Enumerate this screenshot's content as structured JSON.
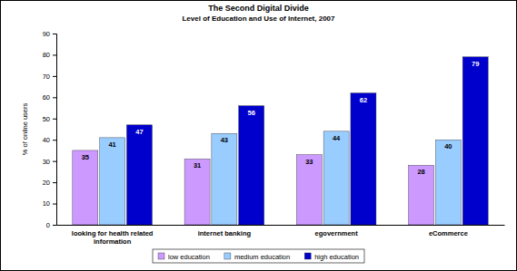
{
  "chart_data": {
    "type": "bar",
    "title": "The Second Digital Divide",
    "subtitle": "Level of Education and Use of Internet, 2007",
    "y_label": "% of online users",
    "categories": [
      "looking for health related information",
      "internet banking",
      "egovernment",
      "eCommerce"
    ],
    "series": [
      {
        "name": "low education",
        "color": "#cc99ff",
        "values": [
          35,
          31,
          33,
          28
        ]
      },
      {
        "name": "medium education",
        "color": "#99ccff",
        "values": [
          41,
          43,
          44,
          40
        ]
      },
      {
        "name": "high education",
        "color": "#0000cc",
        "values": [
          47,
          56,
          62,
          79
        ]
      }
    ],
    "ylim": [
      0,
      90
    ],
    "yticks": [
      0,
      10,
      20,
      30,
      40,
      50,
      60,
      70,
      80,
      90
    ],
    "grid": false,
    "legend": "bottom",
    "data_labels": true
  }
}
